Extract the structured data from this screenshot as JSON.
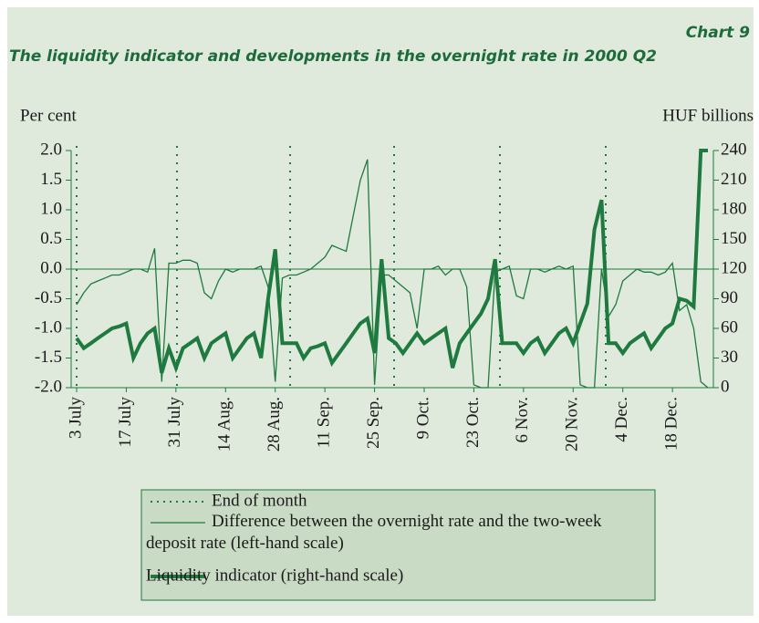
{
  "chart_data": {
    "type": "line",
    "label": "Chart 9",
    "title": "The liquidity indicator and developments in the overnight rate in 2000 Q2",
    "ylabel": "Per cent",
    "y2label": "HUF billions",
    "categories": [
      "3 July",
      null,
      null,
      null,
      null,
      null,
      null,
      "17 July",
      null,
      null,
      null,
      null,
      null,
      null,
      "31 July",
      null,
      null,
      null,
      null,
      null,
      null,
      "14 Aug.",
      null,
      null,
      null,
      null,
      null,
      null,
      "28 Aug.",
      null,
      null,
      null,
      null,
      null,
      null,
      "11 Sep.",
      null,
      null,
      null,
      null,
      null,
      null,
      "25 Sep.",
      null,
      null,
      null,
      null,
      null,
      null,
      "9 Oct.",
      null,
      null,
      null,
      null,
      null,
      null,
      "23 Oct.",
      null,
      null,
      null,
      null,
      null,
      null,
      "6 Nov.",
      null,
      null,
      null,
      null,
      null,
      null,
      "20 Nov.",
      null,
      null,
      null,
      null,
      null,
      null,
      "4 Dec.",
      null,
      null,
      null,
      null,
      null,
      null,
      "18 Dec.",
      null,
      null,
      null,
      null,
      null
    ],
    "end_of_month": "End of month",
    "series": [
      {
        "name": "Difference between the overnight rate and the two-week deposit rate (left-hand scale)",
        "color": "#1e7a3e",
        "width": 1.3,
        "values": [
          -0.6,
          -0.4,
          -0.25,
          -0.2,
          -0.15,
          -0.1,
          -0.1,
          -0.05,
          0,
          0,
          -0.05,
          0.35,
          -1.9,
          0.1,
          0.1,
          0.15,
          0.15,
          0.1,
          -0.4,
          -0.5,
          -0.2,
          0,
          -0.05,
          0,
          0,
          0,
          0.05,
          -0.3,
          -1.9,
          -0.15,
          -0.1,
          -0.1,
          -0.05,
          0,
          0.1,
          0.2,
          0.4,
          0.35,
          0.3,
          0.9,
          1.5,
          1.85,
          -1.95,
          -0.1,
          -0.1,
          -0.2,
          -0.3,
          -0.4,
          -1.0,
          0,
          0,
          0.05,
          -0.1,
          0,
          0,
          -0.3,
          -1.95,
          -2.0,
          -2.0,
          -0.05,
          0,
          0.05,
          -0.45,
          -0.5,
          0,
          0,
          -0.05,
          0,
          0.05,
          0,
          0.05,
          -1.95,
          -2.0,
          -2.0,
          0,
          -0.8,
          -0.6,
          -0.2,
          -0.1,
          0,
          -0.05,
          -0.05,
          -0.1,
          -0.05,
          0.1,
          -0.7,
          -0.6,
          -1.0,
          -1.9,
          -2.0
        ]
      },
      {
        "name": "Liquidity indicator (right-hand scale)",
        "color": "#1e7a3e",
        "width": 4,
        "axis": "y2",
        "values": [
          50,
          40,
          45,
          50,
          55,
          60,
          62,
          65,
          30,
          45,
          55,
          60,
          15,
          40,
          20,
          40,
          45,
          50,
          30,
          45,
          50,
          55,
          30,
          40,
          50,
          55,
          30,
          90,
          140,
          45,
          45,
          45,
          30,
          40,
          42,
          45,
          25,
          35,
          45,
          55,
          65,
          70,
          35,
          130,
          50,
          45,
          35,
          45,
          55,
          45,
          50,
          55,
          60,
          20,
          45,
          55,
          65,
          75,
          90,
          130,
          45,
          45,
          45,
          35,
          45,
          50,
          35,
          45,
          55,
          60,
          45,
          65,
          85,
          160,
          190,
          45,
          45,
          35,
          45,
          50,
          55,
          40,
          50,
          60,
          65,
          90,
          88,
          82,
          240,
          240
        ]
      }
    ],
    "ylim": [
      -2,
      2
    ],
    "yticks": [
      {
        "value": -2,
        "label": "-2.0"
      },
      -1.5,
      {
        "value": -1,
        "label": "-1.0"
      },
      -0.5,
      {
        "value": 0,
        "label": "0.0"
      },
      0.5,
      {
        "value": 1,
        "label": "1.0"
      },
      1.5,
      {
        "value": 2,
        "label": "2.0"
      }
    ],
    "y2lim": [
      0,
      240
    ],
    "y2ticks": [
      0,
      30,
      60,
      90,
      120,
      150,
      180,
      210,
      240
    ]
  }
}
